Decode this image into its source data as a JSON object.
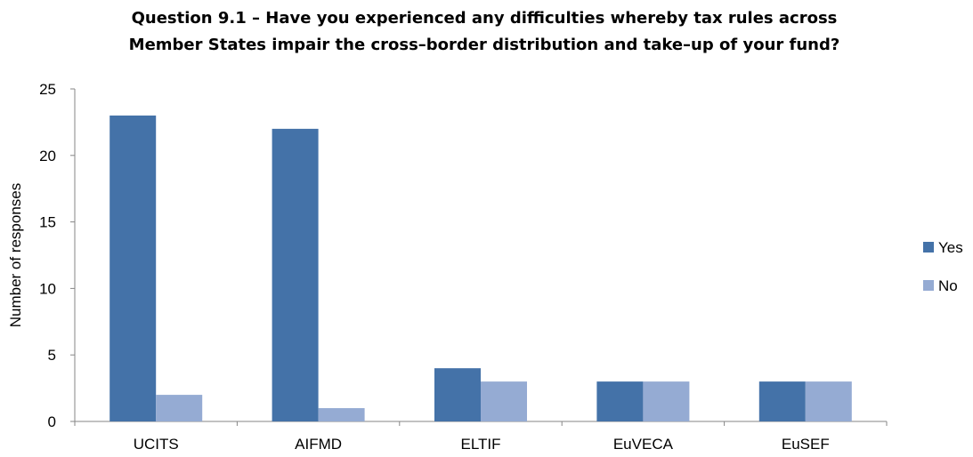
{
  "chart_data": {
    "type": "bar",
    "title_lines": [
      "Question 9.1 – Have you experienced any difficulties whereby tax rules across",
      "Member States impair the cross–border distribution and take–up of your fund?"
    ],
    "categories": [
      "UCITS",
      "AIFMD",
      "ELTIF",
      "EuVECA",
      "EuSEF"
    ],
    "series": [
      {
        "name": "Yes",
        "values": [
          23,
          22,
          4,
          3,
          3
        ],
        "color": "#4472A8"
      },
      {
        "name": "No",
        "values": [
          2,
          1,
          3,
          3,
          3
        ],
        "color": "#95ABD3"
      }
    ],
    "xlabel": "",
    "ylabel": "Number of responses",
    "ylim": [
      0,
      25
    ],
    "yticks": [
      0,
      5,
      10,
      15,
      20,
      25
    ],
    "grid": false,
    "legend_position": "right"
  }
}
